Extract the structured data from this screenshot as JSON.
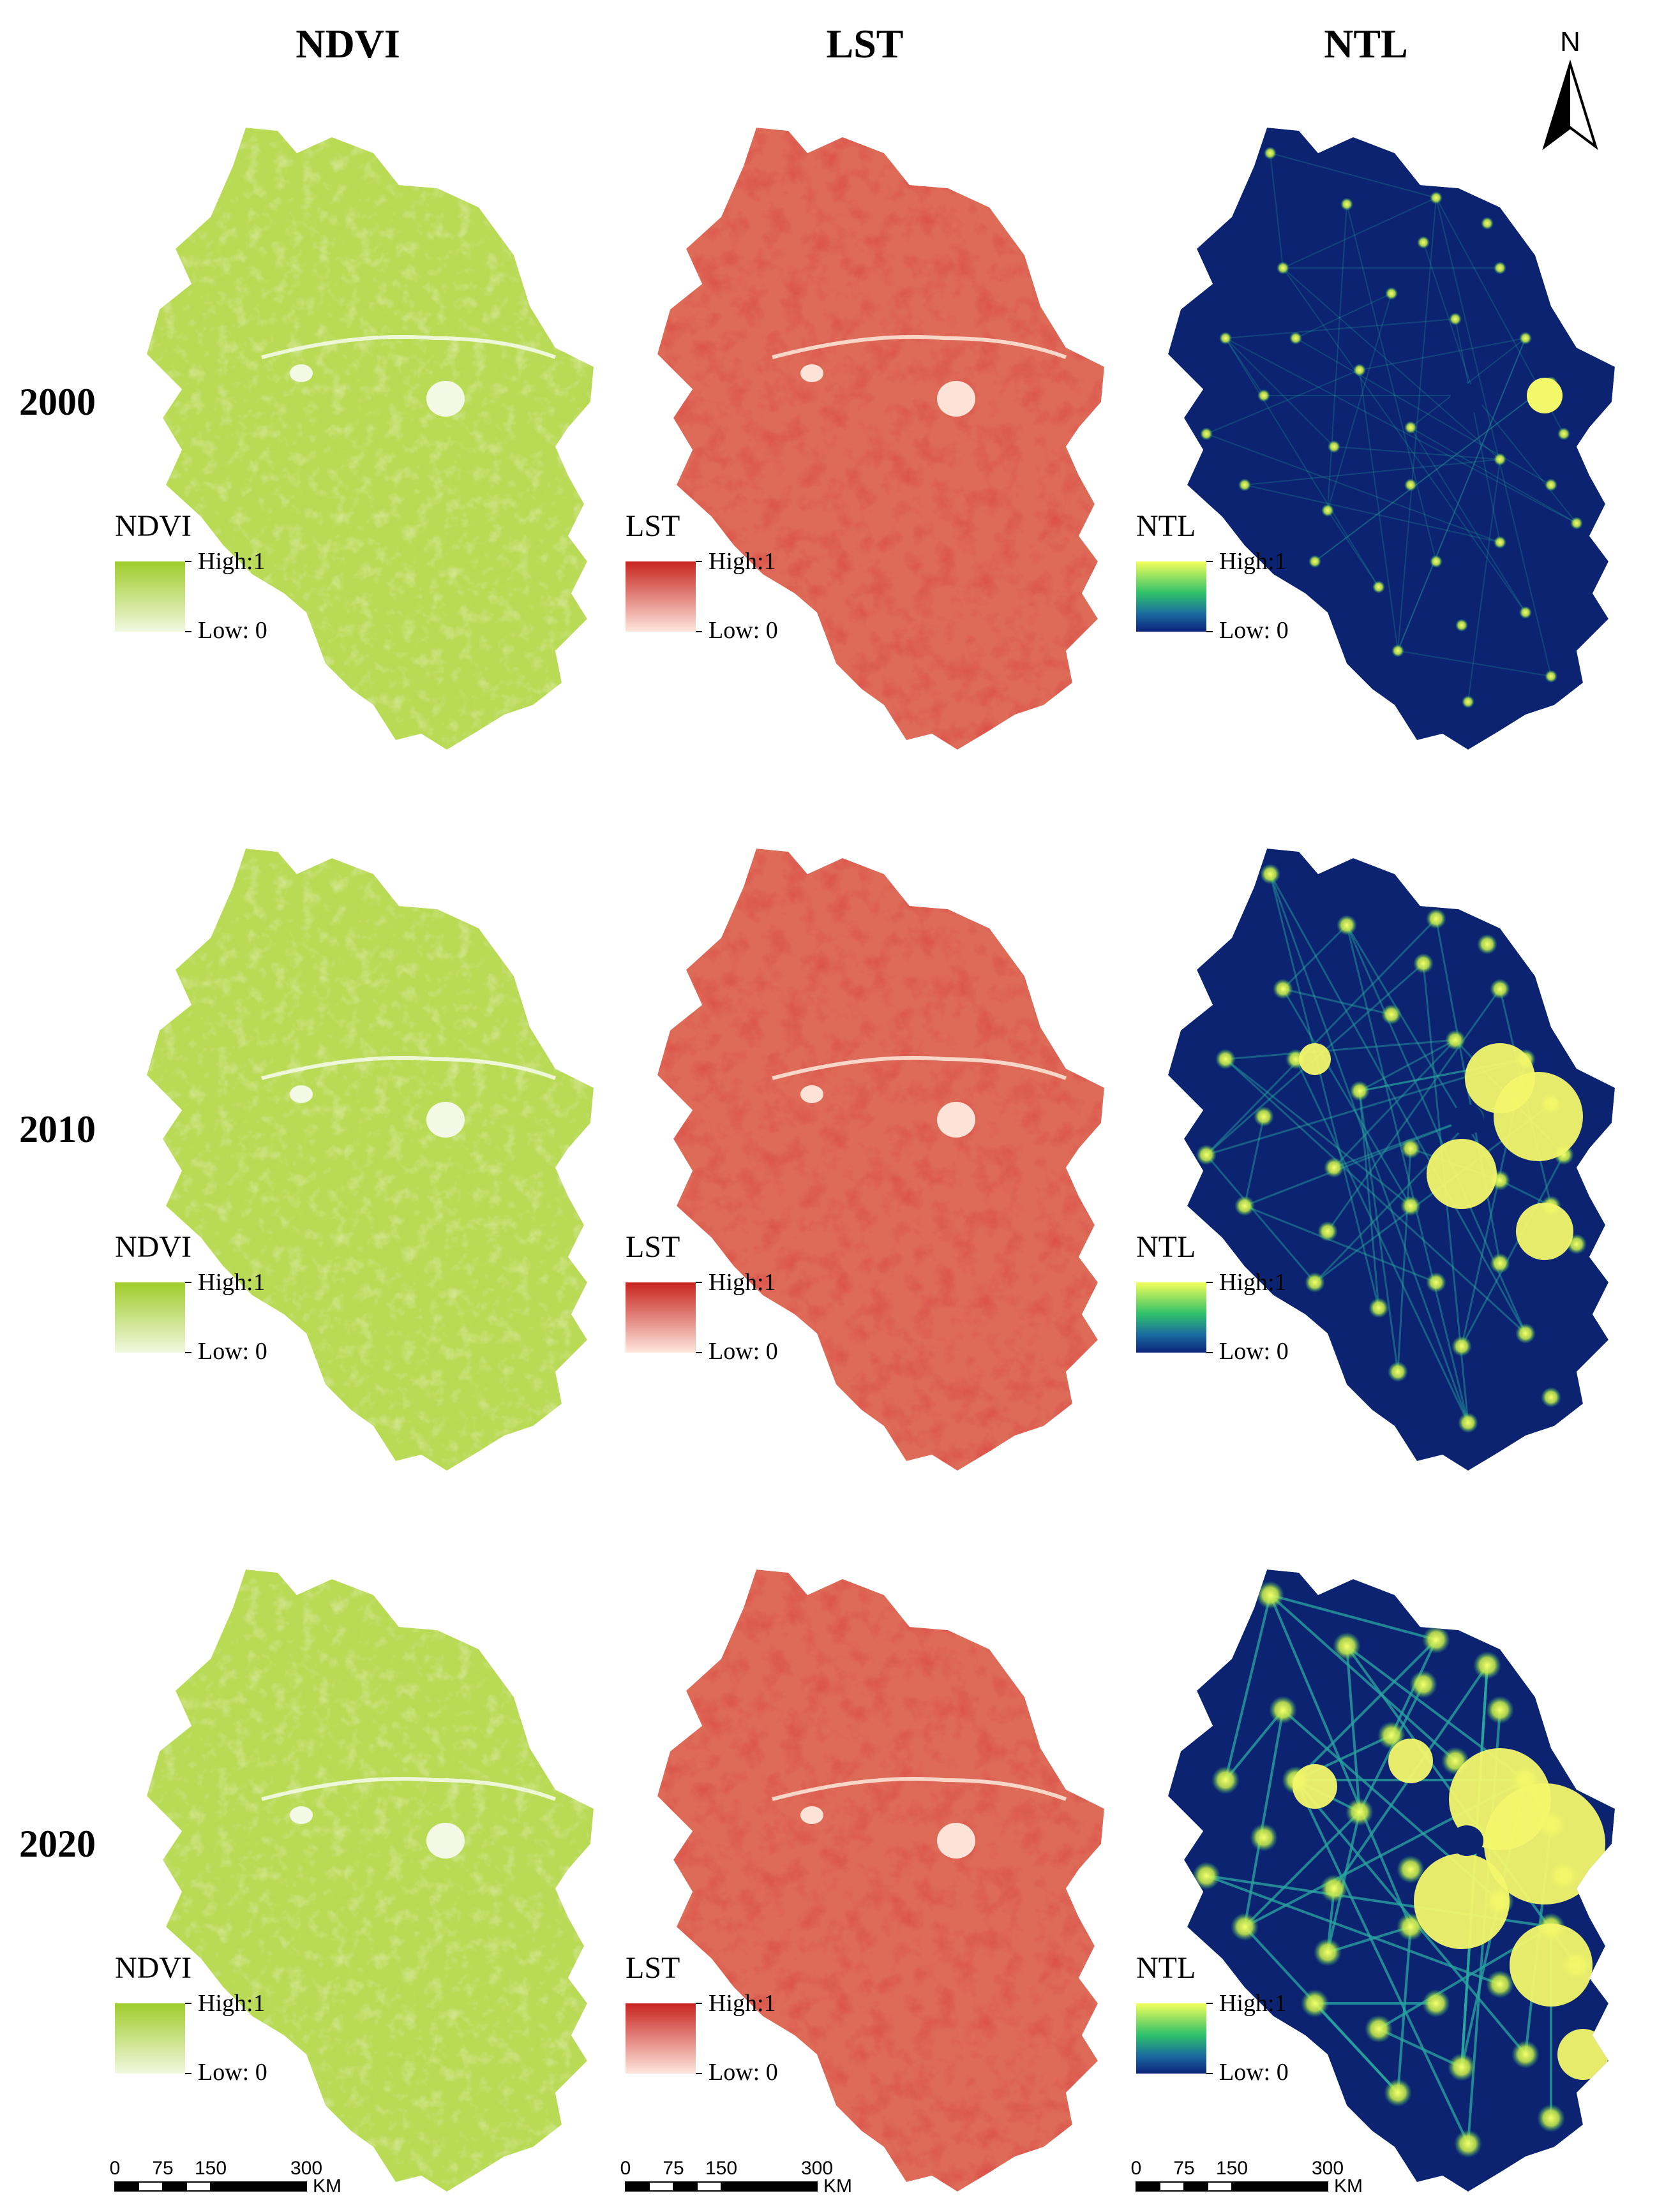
{
  "columns": [
    {
      "key": "ndvi",
      "title": "NDVI",
      "legend_title": "NDVI",
      "high": "High:1",
      "low": "Low: 0",
      "colors": {
        "high": "#9fcc2a",
        "low": "#f1f8df",
        "map": "#b9da55"
      }
    },
    {
      "key": "lst",
      "title": "LST",
      "legend_title": "LST",
      "high": "High:1",
      "low": "Low: 0",
      "colors": {
        "high": "#c8241f",
        "low": "#fde6dc",
        "map": "#de6a58"
      }
    },
    {
      "key": "ntl",
      "title": "NTL",
      "legend_title": "NTL",
      "high": "High:1",
      "low": "Low: 0",
      "colors": {
        "high": "#f3ff5a",
        "mid": "#1fb26b",
        "low": "#0c237a",
        "map": "#0b2371",
        "light": "#f3f76a"
      }
    }
  ],
  "years": [
    "2000",
    "2010",
    "2020"
  ],
  "north_arrow": {
    "label": "N"
  },
  "scale_bar": {
    "ticks": [
      "0",
      "75",
      "150",
      "300"
    ],
    "unit": "KM"
  }
}
